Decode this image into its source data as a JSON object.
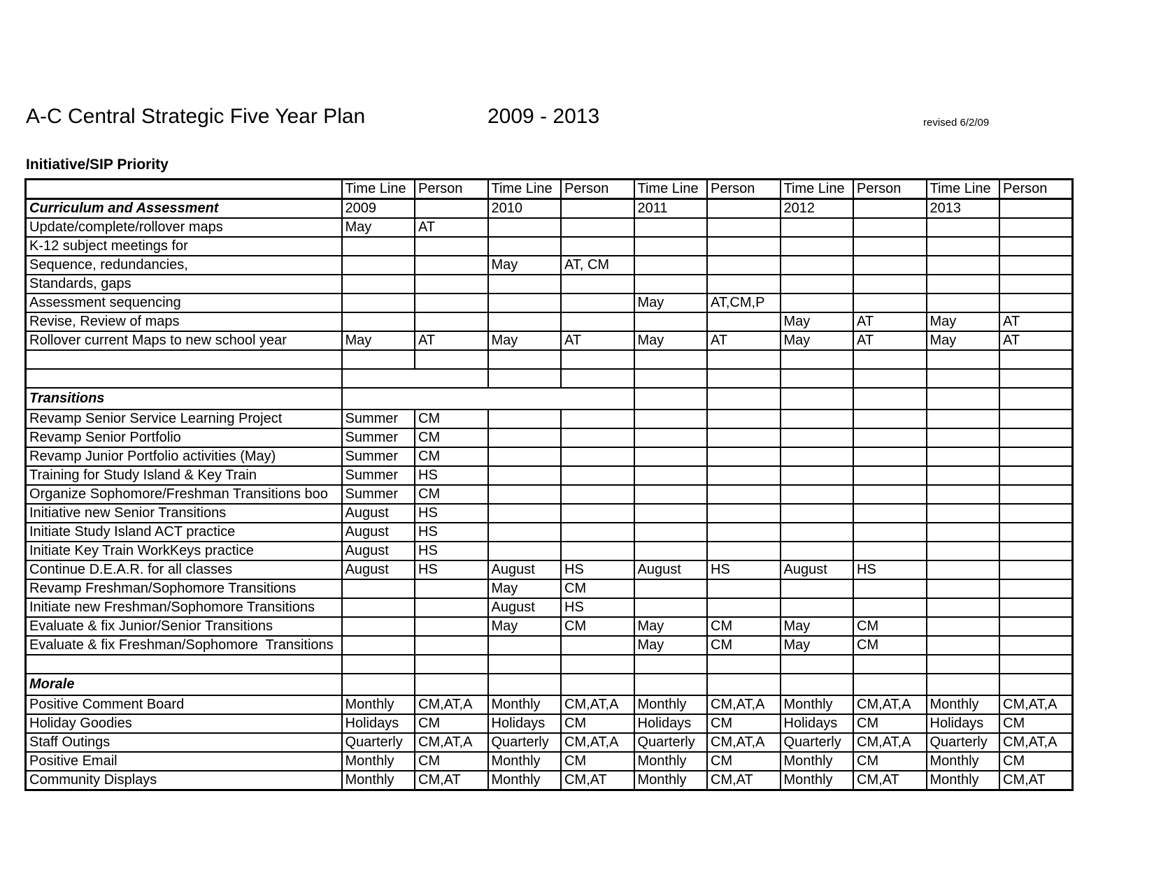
{
  "page": {
    "title": "A-C Central Strategic Five Year Plan",
    "year_range": "2009 - 2013",
    "revised": "revised 6/2/09",
    "subtitle": "Initiative/SIP Priority"
  },
  "table": {
    "column_headers": {
      "time_line": "Time Line",
      "person": "Person"
    },
    "years": [
      "2009",
      "2010",
      "2011",
      "2012",
      "2013"
    ],
    "rows": [
      {
        "label": "Curriculum and Assessment",
        "section": true,
        "year_row": true,
        "cells": [
          "2009",
          "",
          "2010",
          "",
          "2011",
          "",
          "2012",
          "",
          "2013",
          ""
        ]
      },
      {
        "label": "Update/complete/rollover maps",
        "cells": [
          "May",
          "AT",
          "",
          "",
          "",
          "",
          "",
          "",
          "",
          ""
        ]
      },
      {
        "label": "K-12 subject meetings for",
        "cells": [
          "",
          "",
          "",
          "",
          "",
          "",
          "",
          "",
          "",
          ""
        ]
      },
      {
        "label": "Sequence, redundancies,",
        "cells": [
          "",
          "",
          "May",
          "AT, CM",
          "",
          "",
          "",
          "",
          "",
          ""
        ]
      },
      {
        "label": "Standards, gaps",
        "cells": [
          "",
          "",
          "",
          "",
          "",
          "",
          "",
          "",
          "",
          ""
        ]
      },
      {
        "label": "Assessment sequencing",
        "cells": [
          "",
          "",
          "",
          "",
          "May",
          "AT,CM,P",
          "",
          "",
          "",
          ""
        ]
      },
      {
        "label": "Revise, Review of maps",
        "cells": [
          "",
          "",
          "",
          "",
          "",
          "",
          "May",
          "AT",
          "May",
          "AT"
        ]
      },
      {
        "label": "Rollover current Maps to new school year",
        "cells": [
          "May",
          "AT",
          "May",
          "AT",
          "May",
          "AT",
          "May",
          "AT",
          "May",
          "AT"
        ]
      },
      {
        "label": "",
        "cells": [
          "",
          "",
          "",
          "",
          "",
          "",
          "",
          "",
          "",
          ""
        ]
      },
      {
        "label": "",
        "merge": 2,
        "cells": [
          "",
          "",
          "",
          "",
          "",
          "",
          "",
          "",
          ""
        ]
      },
      {
        "label": "Transitions",
        "section": true,
        "merge": 4,
        "cells": [
          "",
          "",
          "",
          "",
          "",
          "",
          ""
        ]
      },
      {
        "label": "Revamp Senior Service Learning Project",
        "cells": [
          "Summer",
          "CM",
          "",
          "",
          "",
          "",
          "",
          "",
          "",
          ""
        ]
      },
      {
        "label": "Revamp Senior Portfolio",
        "cells": [
          "Summer",
          "CM",
          "",
          "",
          "",
          "",
          "",
          "",
          "",
          ""
        ]
      },
      {
        "label": "Revamp Junior Portfolio activities (May)",
        "cells": [
          "Summer",
          "CM",
          "",
          "",
          "",
          "",
          "",
          "",
          "",
          ""
        ]
      },
      {
        "label": "Training for Study Island & Key Train",
        "cells": [
          "Summer",
          "HS",
          "",
          "",
          "",
          "",
          "",
          "",
          "",
          ""
        ]
      },
      {
        "label": "Organize Sophomore/Freshman Transitions boo",
        "cells": [
          "Summer",
          "CM",
          "",
          "",
          "",
          "",
          "",
          "",
          "",
          ""
        ]
      },
      {
        "label": "Initiative new Senior Transitions",
        "cells": [
          "August",
          "HS",
          "",
          "",
          "",
          "",
          "",
          "",
          "",
          ""
        ]
      },
      {
        "label": "Initiate Study Island ACT practice",
        "cells": [
          "August",
          "HS",
          "",
          "",
          "",
          "",
          "",
          "",
          "",
          ""
        ]
      },
      {
        "label": "Initiate Key Train WorkKeys practice",
        "cells": [
          "August",
          "HS",
          "",
          "",
          "",
          "",
          "",
          "",
          "",
          ""
        ]
      },
      {
        "label": "Continue D.E.A.R. for all classes",
        "cells": [
          "August",
          "HS",
          "August",
          "HS",
          "August",
          "HS",
          "August",
          "HS",
          "",
          ""
        ]
      },
      {
        "label": "Revamp Freshman/Sophomore Transitions",
        "cells": [
          "",
          "",
          "May",
          "CM",
          "",
          "",
          "",
          "",
          "",
          ""
        ]
      },
      {
        "label": "Initiate new Freshman/Sophomore Transitions",
        "cells": [
          "",
          "",
          "August",
          "HS",
          "",
          "",
          "",
          "",
          "",
          ""
        ]
      },
      {
        "label": "Evaluate & fix Junior/Senior Transitions",
        "cells": [
          "",
          "",
          "May",
          "CM",
          "May",
          "CM",
          "May",
          "CM",
          "",
          ""
        ]
      },
      {
        "label": "Evaluate & fix Freshman/Sophomore  Transitions",
        "cells": [
          "",
          "",
          "",
          "",
          "May",
          "CM",
          "May",
          "CM",
          "",
          ""
        ]
      },
      {
        "label": "",
        "cells": [
          "",
          "",
          "",
          "",
          "",
          "",
          "",
          "",
          "",
          ""
        ]
      },
      {
        "label": "Morale",
        "section": true,
        "cells": [
          "",
          "",
          "",
          "",
          "",
          "",
          "",
          "",
          "",
          ""
        ]
      },
      {
        "label": "Positive Comment Board",
        "cells": [
          "Monthly",
          "CM,AT,A",
          "Monthly",
          "CM,AT,A",
          "Monthly",
          "CM,AT,A",
          "Monthly",
          "CM,AT,A",
          "Monthly",
          "CM,AT,A"
        ]
      },
      {
        "label": "Holiday Goodies",
        "cells": [
          "Holidays",
          "CM",
          "Holidays",
          "CM",
          "Holidays",
          "CM",
          "Holidays",
          "CM",
          "Holidays",
          "CM"
        ]
      },
      {
        "label": "Staff Outings",
        "cells": [
          "Quarterly",
          "CM,AT,A",
          "Quarterly",
          "CM,AT,A",
          "Quarterly",
          "CM,AT,A",
          "Quarterly",
          "CM,AT,A",
          "Quarterly",
          "CM,AT,A"
        ]
      },
      {
        "label": "Positive Email",
        "cells": [
          "Monthly",
          "CM",
          "Monthly",
          "CM",
          "Monthly",
          "CM",
          "Monthly",
          "CM",
          "Monthly",
          "CM"
        ]
      },
      {
        "label": "Community Displays",
        "cells": [
          "Monthly",
          "CM,AT",
          "Monthly",
          "CM,AT",
          "Monthly",
          "CM,AT",
          "Monthly",
          "CM,AT",
          "Monthly",
          "CM,AT"
        ]
      }
    ]
  }
}
